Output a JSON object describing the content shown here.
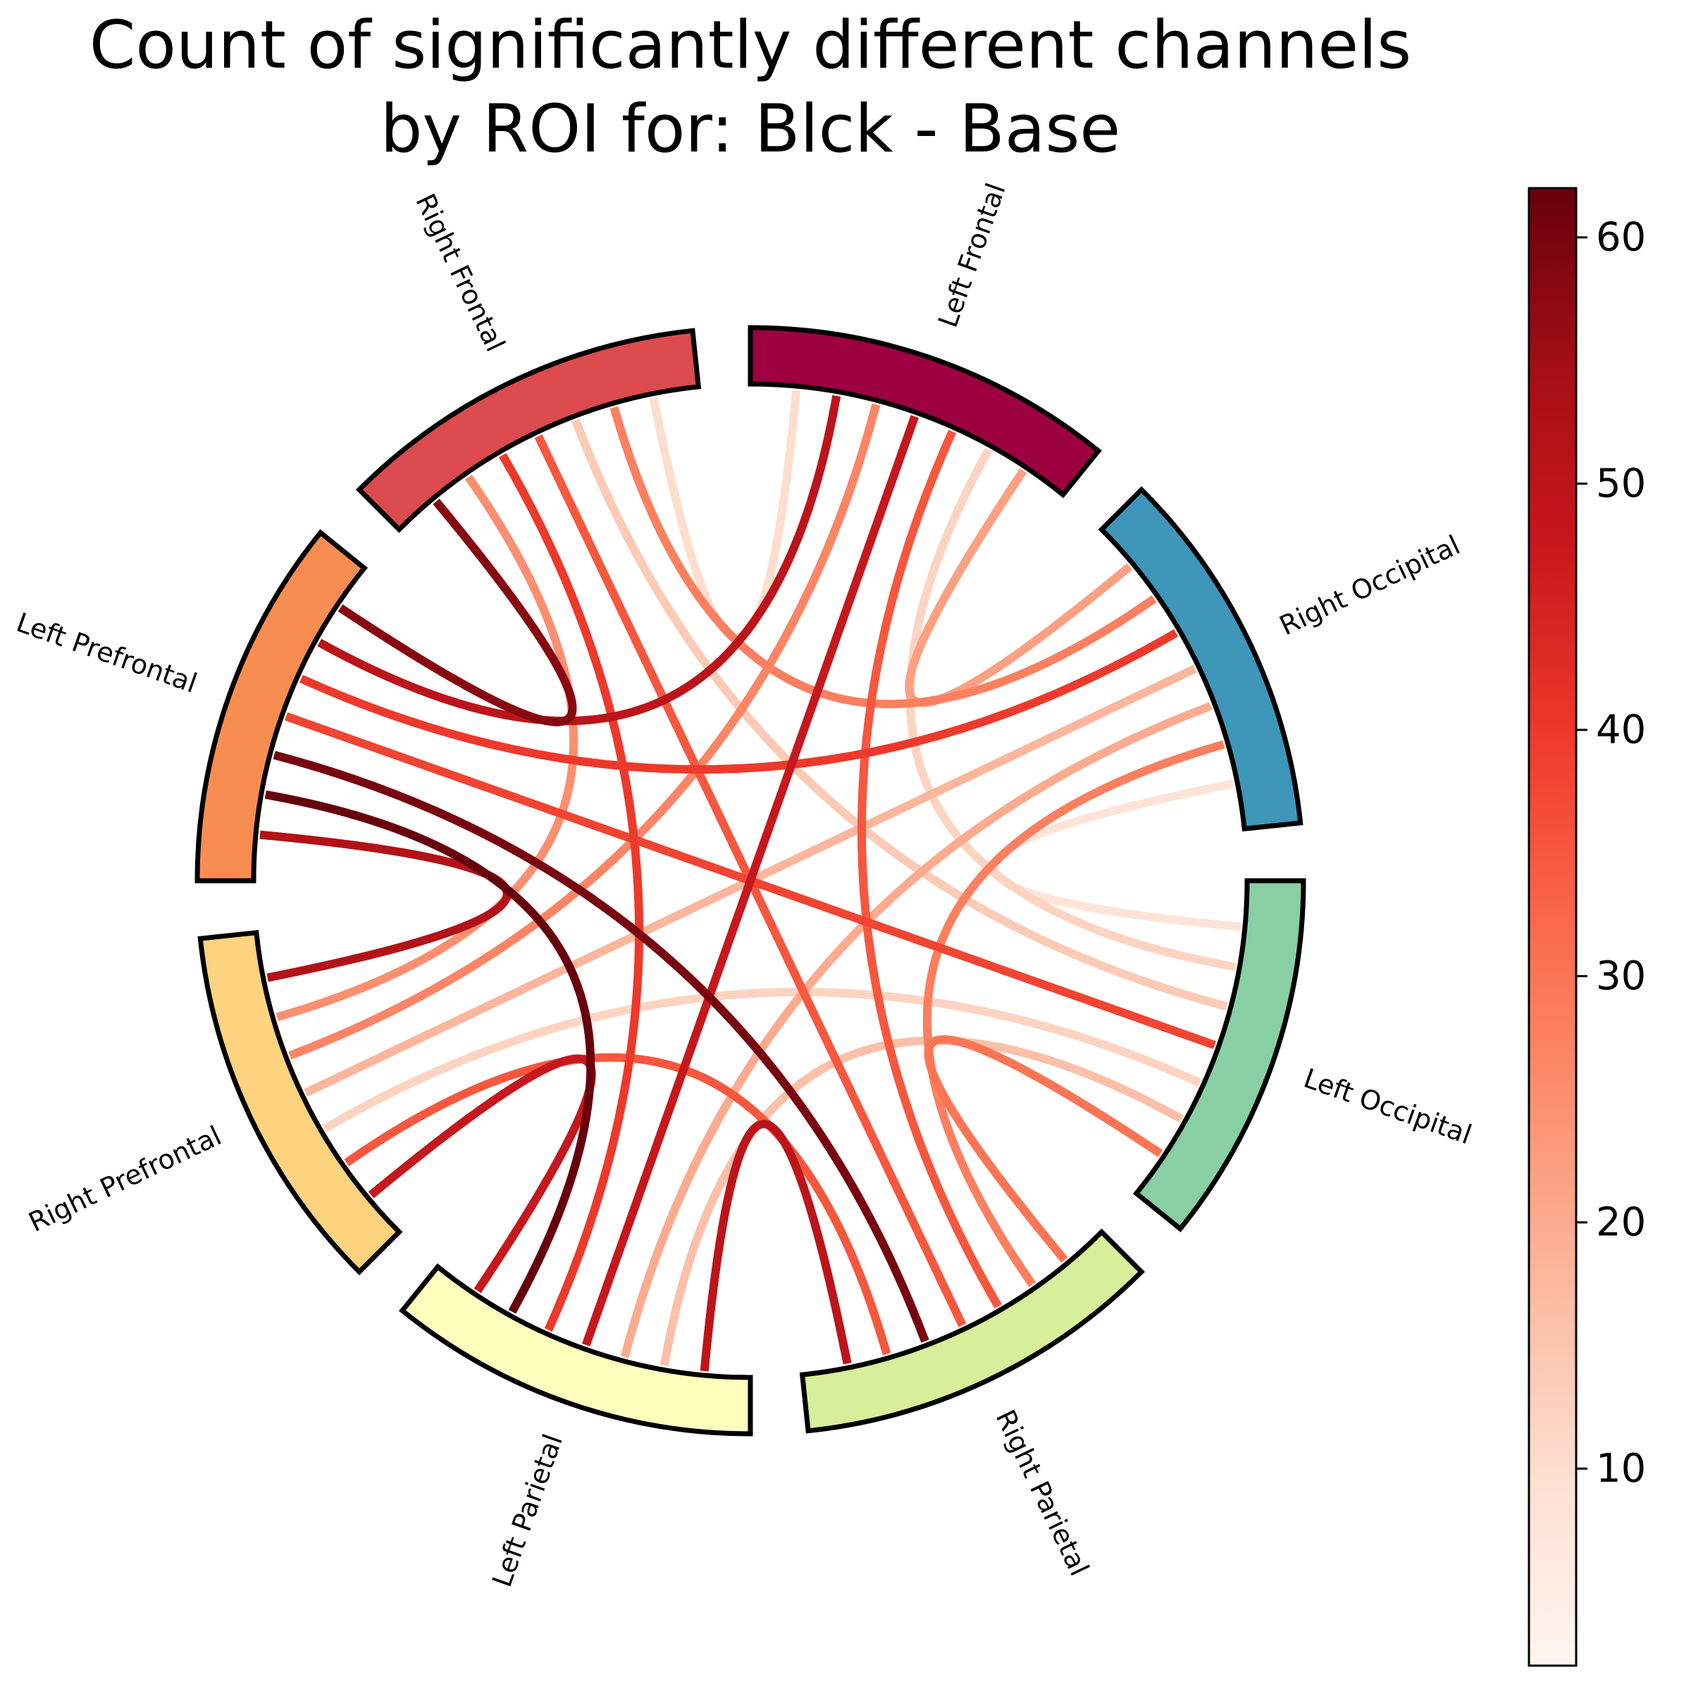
{
  "chart_data": {
    "type": "chord",
    "title_lines": [
      "Count of significantly different channels",
      "by ROI for: Blck - Base"
    ],
    "nodes": [
      {
        "name": "Left Frontal",
        "color": "#9e0142"
      },
      {
        "name": "Right Occipital",
        "color": "#3e96b9"
      },
      {
        "name": "Left Occipital",
        "color": "#88cfa4"
      },
      {
        "name": "Right Parietal",
        "color": "#d7ef9b"
      },
      {
        "name": "Left Parietal",
        "color": "#fefebd"
      },
      {
        "name": "Right Prefrontal",
        "color": "#fdd380"
      },
      {
        "name": "Left Prefrontal",
        "color": "#f88d52"
      },
      {
        "name": "Right Frontal",
        "color": "#dc4b4e"
      }
    ],
    "links": [
      {
        "source": "Left Frontal",
        "target": "Right Occipital",
        "value": 22
      },
      {
        "source": "Left Frontal",
        "target": "Left Occipital",
        "value": 12
      },
      {
        "source": "Left Frontal",
        "target": "Right Parietal",
        "value": 35
      },
      {
        "source": "Left Frontal",
        "target": "Left Parietal",
        "value": 48
      },
      {
        "source": "Left Frontal",
        "target": "Right Prefrontal",
        "value": 27
      },
      {
        "source": "Left Frontal",
        "target": "Left Prefrontal",
        "value": 50
      },
      {
        "source": "Left Frontal",
        "target": "Right Frontal",
        "value": 10
      },
      {
        "source": "Right Occipital",
        "target": "Left Occipital",
        "value": 8
      },
      {
        "source": "Right Occipital",
        "target": "Right Parietal",
        "value": 28
      },
      {
        "source": "Right Occipital",
        "target": "Left Parietal",
        "value": 20
      },
      {
        "source": "Right Occipital",
        "target": "Right Prefrontal",
        "value": 18
      },
      {
        "source": "Right Occipital",
        "target": "Left Prefrontal",
        "value": 40
      },
      {
        "source": "Right Occipital",
        "target": "Right Frontal",
        "value": 28
      },
      {
        "source": "Left Occipital",
        "target": "Right Parietal",
        "value": 30
      },
      {
        "source": "Left Occipital",
        "target": "Left Parietal",
        "value": 16
      },
      {
        "source": "Left Occipital",
        "target": "Right Prefrontal",
        "value": 12
      },
      {
        "source": "Left Occipital",
        "target": "Left Prefrontal",
        "value": 38
      },
      {
        "source": "Left Occipital",
        "target": "Right Frontal",
        "value": 14
      },
      {
        "source": "Right Parietal",
        "target": "Left Parietal",
        "value": 50
      },
      {
        "source": "Right Parietal",
        "target": "Right Prefrontal",
        "value": 35
      },
      {
        "source": "Right Parietal",
        "target": "Left Prefrontal",
        "value": 60
      },
      {
        "source": "Right Parietal",
        "target": "Right Frontal",
        "value": 35
      },
      {
        "source": "Left Parietal",
        "target": "Right Prefrontal",
        "value": 48
      },
      {
        "source": "Left Parietal",
        "target": "Left Prefrontal",
        "value": 62
      },
      {
        "source": "Left Parietal",
        "target": "Right Frontal",
        "value": 40
      },
      {
        "source": "Right Prefrontal",
        "target": "Left Prefrontal",
        "value": 52
      },
      {
        "source": "Right Prefrontal",
        "target": "Right Frontal",
        "value": 25
      },
      {
        "source": "Left Prefrontal",
        "target": "Right Frontal",
        "value": 58
      }
    ],
    "colorbar": {
      "colormap": "Reds",
      "min": 2,
      "max": 62,
      "ticks": [
        10,
        20,
        30,
        40,
        50,
        60
      ]
    }
  }
}
